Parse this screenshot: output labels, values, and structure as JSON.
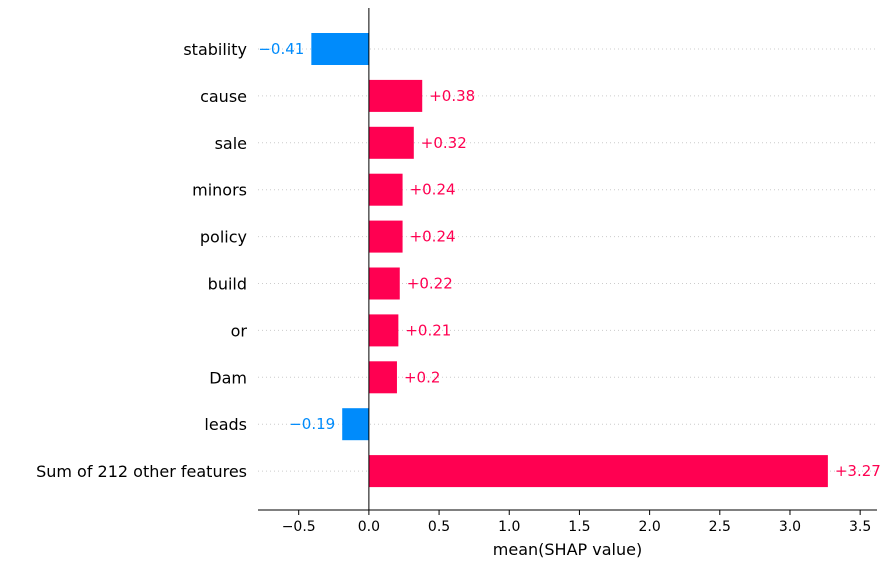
{
  "chart_data": {
    "type": "bar",
    "orientation": "horizontal",
    "xlabel": "mean(SHAP value)",
    "xlim": [
      -0.79,
      3.62
    ],
    "xticks": [
      -0.5,
      0.0,
      0.5,
      1.0,
      1.5,
      2.0,
      2.5,
      3.0,
      3.5
    ],
    "xtick_labels": [
      "−0.5",
      "0.0",
      "0.5",
      "1.0",
      "1.5",
      "2.0",
      "2.5",
      "3.0",
      "3.5"
    ],
    "categories": [
      "stability",
      "cause",
      "sale",
      "minors",
      "policy",
      "build",
      "or",
      "Dam",
      "leads",
      "Sum of 212 other features"
    ],
    "values": [
      -0.41,
      0.38,
      0.32,
      0.24,
      0.24,
      0.22,
      0.21,
      0.2,
      -0.19,
      3.27
    ],
    "value_labels": [
      "−0.41",
      "+0.38",
      "+0.32",
      "+0.24",
      "+0.24",
      "+0.22",
      "+0.21",
      "+0.2",
      "−0.19",
      "+3.27"
    ],
    "colors": {
      "positive": "#ff0051",
      "negative": "#008bfb"
    },
    "grid": "dotted horizontal row lines"
  }
}
